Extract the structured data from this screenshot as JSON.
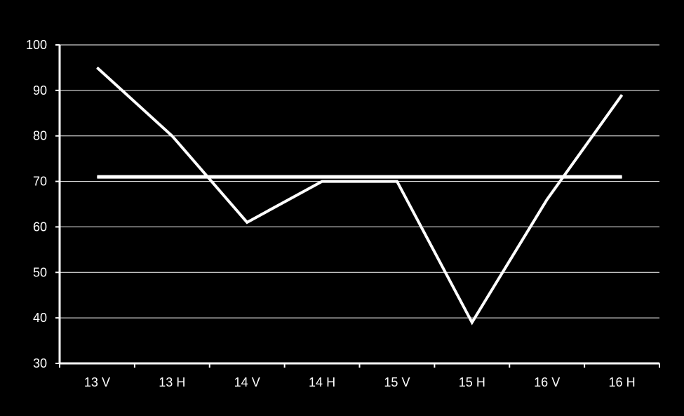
{
  "chart_data": {
    "type": "line",
    "categories": [
      "13 V",
      "13 H",
      "14 V",
      "14 H",
      "15 V",
      "15 H",
      "16 V",
      "16 H"
    ],
    "series": [
      {
        "values": [
          95,
          80,
          61,
          70,
          70,
          39,
          66,
          89
        ]
      },
      {
        "values": [
          71,
          71,
          71,
          71,
          71,
          71,
          71,
          71
        ]
      }
    ],
    "ylim": [
      30,
      100
    ],
    "yticks": [
      30,
      40,
      50,
      60,
      70,
      80,
      90,
      100
    ],
    "grid": true,
    "legend": "none",
    "colors": {
      "background": "#000000",
      "line": "#ffffff",
      "grid": "#ffffff"
    }
  }
}
